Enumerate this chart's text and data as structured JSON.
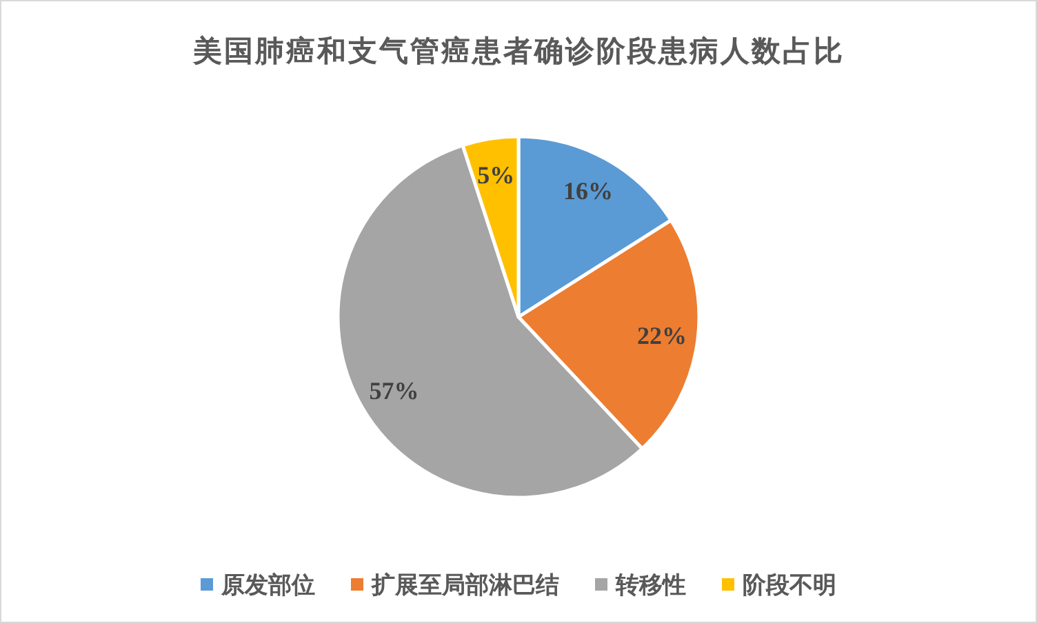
{
  "chart_data": {
    "type": "pie",
    "title": "美国肺癌和支气管癌患者确诊阶段患病人数占比",
    "categories": [
      "原发部位",
      "扩展至局部淋巴结",
      "转移性",
      "阶段不明"
    ],
    "values": [
      16,
      22,
      57,
      5
    ],
    "colors": [
      "#5b9bd5",
      "#ed7d31",
      "#a5a5a5",
      "#ffc000"
    ],
    "value_labels": [
      "16%",
      "22%",
      "57%",
      "5%"
    ],
    "legend": "bottom"
  }
}
